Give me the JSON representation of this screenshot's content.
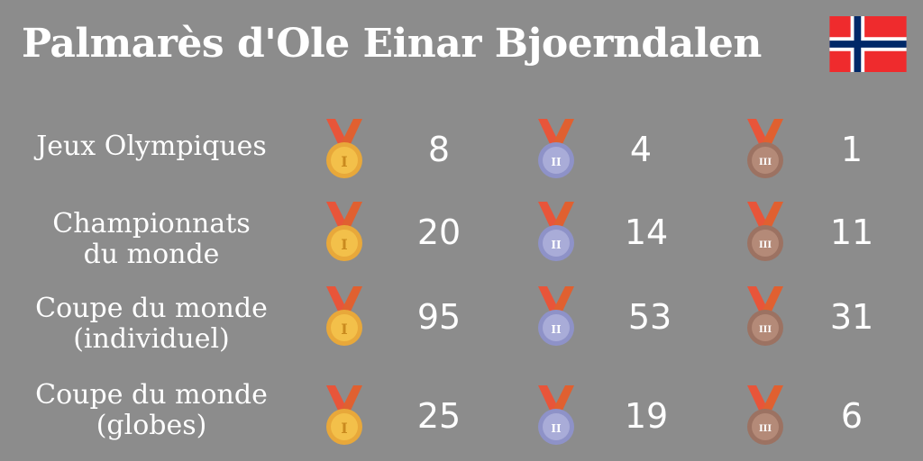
{
  "title": "Palmarès d'Ole Einar Bjoerndalen",
  "flag_icon": "norway-flag-icon",
  "colors": {
    "background": "#8c8c8c",
    "ribbon": "#e8553a",
    "gold": "#f3c04a",
    "silver": "#a9acd8",
    "bronze": "#b48a78"
  },
  "medal_icons": {
    "gold": "I",
    "silver": "II",
    "bronze": "III"
  },
  "rows": [
    {
      "label": "Jeux Olympiques",
      "gold": "8",
      "silver": "4",
      "bronze": "1"
    },
    {
      "label": "Championnats\ndu monde",
      "gold": "20",
      "silver": "14",
      "bronze": "11"
    },
    {
      "label": "Coupe du monde\n(individuel)",
      "gold": "95",
      "silver": "53",
      "bronze": "31"
    },
    {
      "label": "Coupe du monde\n(globes)",
      "gold": "25",
      "silver": "19",
      "bronze": "6"
    }
  ]
}
